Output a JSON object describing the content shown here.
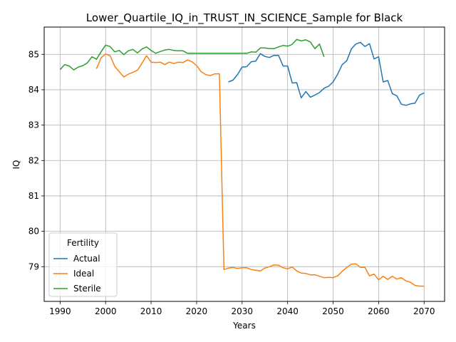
{
  "chart_data": {
    "type": "line",
    "title": "Lower_Quartile_IQ_in_TRUST_IN_SCIENCE_Sample for Black",
    "xlabel": "Years",
    "ylabel": "IQ",
    "xlim": [
      1986.5,
      2074.5
    ],
    "ylim": [
      78.02,
      85.77
    ],
    "xticks": [
      1990,
      2000,
      2010,
      2020,
      2030,
      2040,
      2050,
      2060,
      2070
    ],
    "yticks": [
      79,
      80,
      81,
      82,
      83,
      84,
      85
    ],
    "grid": true,
    "legend": {
      "title": "Fertility",
      "placement": "lower-left"
    },
    "series": [
      {
        "name": "Actual",
        "color": "#1f77b4",
        "x": [
          2027,
          2028,
          2029,
          2030,
          2031,
          2032,
          2033,
          2034,
          2035,
          2036,
          2037,
          2038,
          2039,
          2040,
          2041,
          2042,
          2043,
          2044,
          2045,
          2046,
          2047,
          2048,
          2049,
          2050,
          2051,
          2052,
          2053,
          2054,
          2055,
          2056,
          2057,
          2058,
          2059,
          2060,
          2061,
          2062,
          2063,
          2064,
          2065,
          2066,
          2067,
          2068,
          2069,
          2070
        ],
        "y": [
          84.22,
          84.27,
          84.43,
          84.64,
          84.65,
          84.79,
          84.81,
          85.02,
          84.94,
          84.91,
          84.97,
          84.97,
          84.67,
          84.67,
          84.19,
          84.2,
          83.77,
          83.95,
          83.79,
          83.85,
          83.92,
          84.04,
          84.1,
          84.22,
          84.44,
          84.71,
          84.82,
          85.15,
          85.29,
          85.34,
          85.22,
          85.3,
          84.87,
          84.93,
          84.22,
          84.26,
          83.89,
          83.83,
          83.59,
          83.56,
          83.6,
          83.62,
          83.85,
          83.91
        ]
      },
      {
        "name": "Ideal",
        "color": "#ff7f0e",
        "x": [
          1998,
          1999,
          2000,
          2001,
          2002,
          2003,
          2004,
          2005,
          2006,
          2007,
          2008,
          2009,
          2010,
          2011,
          2012,
          2013,
          2014,
          2015,
          2016,
          2017,
          2018,
          2019,
          2020,
          2021,
          2022,
          2023,
          2024,
          2025,
          2026,
          2027,
          2028,
          2029,
          2030,
          2031,
          2032,
          2033,
          2034,
          2035,
          2036,
          2037,
          2038,
          2039,
          2040,
          2041,
          2042,
          2043,
          2044,
          2045,
          2046,
          2047,
          2048,
          2049,
          2050,
          2051,
          2052,
          2053,
          2054,
          2055,
          2056,
          2057,
          2058,
          2059,
          2060,
          2061,
          2062,
          2063,
          2064,
          2065,
          2066,
          2067,
          2068,
          2069,
          2070
        ],
        "y": [
          84.59,
          84.9,
          85.01,
          84.96,
          84.66,
          84.51,
          84.36,
          84.44,
          84.49,
          84.55,
          84.75,
          84.96,
          84.78,
          84.77,
          84.78,
          84.71,
          84.78,
          84.74,
          84.78,
          84.77,
          84.84,
          84.79,
          84.68,
          84.51,
          84.43,
          84.4,
          84.45,
          84.45,
          78.92,
          78.96,
          78.98,
          78.95,
          78.97,
          78.97,
          78.92,
          78.9,
          78.88,
          78.96,
          79.0,
          79.05,
          79.04,
          78.97,
          78.94,
          78.99,
          78.88,
          78.82,
          78.81,
          78.77,
          78.77,
          78.73,
          78.69,
          78.7,
          78.69,
          78.74,
          78.87,
          78.98,
          79.07,
          79.08,
          78.98,
          78.98,
          78.74,
          78.79,
          78.63,
          78.73,
          78.64,
          78.73,
          78.65,
          78.69,
          78.6,
          78.56,
          78.47,
          78.45,
          78.45
        ]
      },
      {
        "name": "Sterile",
        "color": "#2ca02c",
        "x": [
          1990,
          1991,
          1992,
          1993,
          1994,
          1995,
          1996,
          1997,
          1998,
          1999,
          2000,
          2001,
          2002,
          2003,
          2004,
          2005,
          2006,
          2007,
          2008,
          2009,
          2010,
          2011,
          2012,
          2013,
          2014,
          2015,
          2016,
          2017,
          2018,
          2019,
          2020,
          2021,
          2022,
          2023,
          2024,
          2025,
          2026,
          2027,
          2028,
          2029,
          2030,
          2031,
          2032,
          2033,
          2034,
          2035,
          2036,
          2037,
          2038,
          2039,
          2040,
          2041,
          2042,
          2043,
          2044,
          2045,
          2046,
          2047,
          2048
        ],
        "y": [
          84.57,
          84.71,
          84.67,
          84.56,
          84.64,
          84.68,
          84.76,
          84.93,
          84.86,
          85.07,
          85.26,
          85.22,
          85.07,
          85.11,
          84.99,
          85.1,
          85.14,
          85.04,
          85.15,
          85.21,
          85.11,
          85.03,
          85.08,
          85.12,
          85.14,
          85.11,
          85.1,
          85.1,
          85.03,
          85.03,
          85.03,
          85.03,
          85.03,
          85.03,
          85.03,
          85.03,
          85.03,
          85.03,
          85.03,
          85.03,
          85.03,
          85.03,
          85.07,
          85.06,
          85.18,
          85.18,
          85.16,
          85.16,
          85.21,
          85.25,
          85.23,
          85.28,
          85.42,
          85.38,
          85.41,
          85.35,
          85.16,
          85.29,
          84.93
        ]
      }
    ]
  }
}
